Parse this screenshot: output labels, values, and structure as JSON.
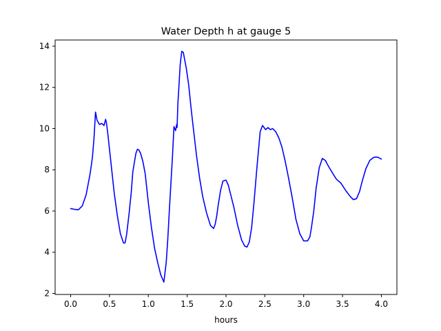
{
  "chart_data": {
    "type": "line",
    "title": "Water Depth h at gauge 5",
    "xlabel": "hours",
    "ylabel": "",
    "xlim": [
      -0.2,
      4.2
    ],
    "ylim": [
      1.95,
      14.3
    ],
    "xticks": [
      0.0,
      0.5,
      1.0,
      1.5,
      2.0,
      2.5,
      3.0,
      3.5,
      4.0
    ],
    "xtick_labels": [
      "0.0",
      "0.5",
      "1.0",
      "1.5",
      "2.0",
      "2.5",
      "3.0",
      "3.5",
      "4.0"
    ],
    "yticks": [
      2,
      4,
      6,
      8,
      10,
      12,
      14
    ],
    "ytick_labels": [
      "2",
      "4",
      "6",
      "8",
      "10",
      "12",
      "14"
    ],
    "grid": false,
    "series": [
      {
        "color": "#0000ff",
        "x": [
          0.0,
          0.05,
          0.1,
          0.15,
          0.2,
          0.25,
          0.28,
          0.3,
          0.32,
          0.34,
          0.37,
          0.4,
          0.43,
          0.45,
          0.46,
          0.48,
          0.52,
          0.56,
          0.6,
          0.64,
          0.68,
          0.7,
          0.72,
          0.75,
          0.78,
          0.8,
          0.84,
          0.86,
          0.88,
          0.9,
          0.93,
          0.96,
          1.0,
          1.04,
          1.08,
          1.12,
          1.16,
          1.2,
          1.23,
          1.25,
          1.27,
          1.29,
          1.31,
          1.33,
          1.35,
          1.365,
          1.37,
          1.375,
          1.38,
          1.39,
          1.41,
          1.43,
          1.45,
          1.47,
          1.49,
          1.52,
          1.55,
          1.58,
          1.62,
          1.66,
          1.7,
          1.75,
          1.8,
          1.84,
          1.86,
          1.88,
          1.9,
          1.93,
          1.96,
          2.0,
          2.03,
          2.06,
          2.1,
          2.15,
          2.2,
          2.24,
          2.27,
          2.3,
          2.33,
          2.36,
          2.4,
          2.44,
          2.47,
          2.49,
          2.51,
          2.54,
          2.57,
          2.6,
          2.64,
          2.68,
          2.72,
          2.76,
          2.8,
          2.85,
          2.9,
          2.95,
          3.0,
          3.05,
          3.08,
          3.1,
          3.13,
          3.16,
          3.2,
          3.24,
          3.28,
          3.3,
          3.33,
          3.37,
          3.42,
          3.48,
          3.54,
          3.6,
          3.64,
          3.68,
          3.72,
          3.75,
          3.8,
          3.85,
          3.9,
          3.93,
          3.96,
          4.0
        ],
        "y": [
          6.12,
          6.08,
          6.06,
          6.25,
          6.8,
          7.8,
          8.6,
          9.5,
          10.8,
          10.4,
          10.2,
          10.25,
          10.15,
          10.45,
          10.3,
          9.7,
          8.3,
          6.9,
          5.8,
          4.9,
          4.45,
          4.45,
          4.85,
          5.8,
          6.9,
          7.9,
          8.8,
          9.0,
          8.95,
          8.8,
          8.4,
          7.8,
          6.4,
          5.2,
          4.2,
          3.5,
          2.9,
          2.55,
          3.5,
          4.6,
          6.0,
          7.3,
          8.6,
          10.1,
          9.9,
          10.2,
          10.05,
          10.6,
          11.2,
          11.8,
          13.1,
          13.75,
          13.7,
          13.3,
          12.9,
          12.1,
          11.0,
          10.0,
          8.7,
          7.6,
          6.7,
          5.9,
          5.3,
          5.15,
          5.35,
          5.75,
          6.3,
          7.0,
          7.45,
          7.5,
          7.25,
          6.8,
          6.2,
          5.3,
          4.6,
          4.3,
          4.25,
          4.5,
          5.2,
          6.4,
          8.2,
          9.85,
          10.15,
          10.05,
          9.95,
          10.05,
          9.95,
          10.0,
          9.85,
          9.55,
          9.1,
          8.45,
          7.7,
          6.7,
          5.6,
          4.9,
          4.55,
          4.55,
          4.75,
          5.2,
          6.0,
          7.1,
          8.1,
          8.55,
          8.45,
          8.3,
          8.1,
          7.85,
          7.55,
          7.35,
          7.0,
          6.7,
          6.55,
          6.6,
          6.95,
          7.4,
          8.05,
          8.45,
          8.6,
          8.62,
          8.6,
          8.52
        ]
      }
    ]
  }
}
